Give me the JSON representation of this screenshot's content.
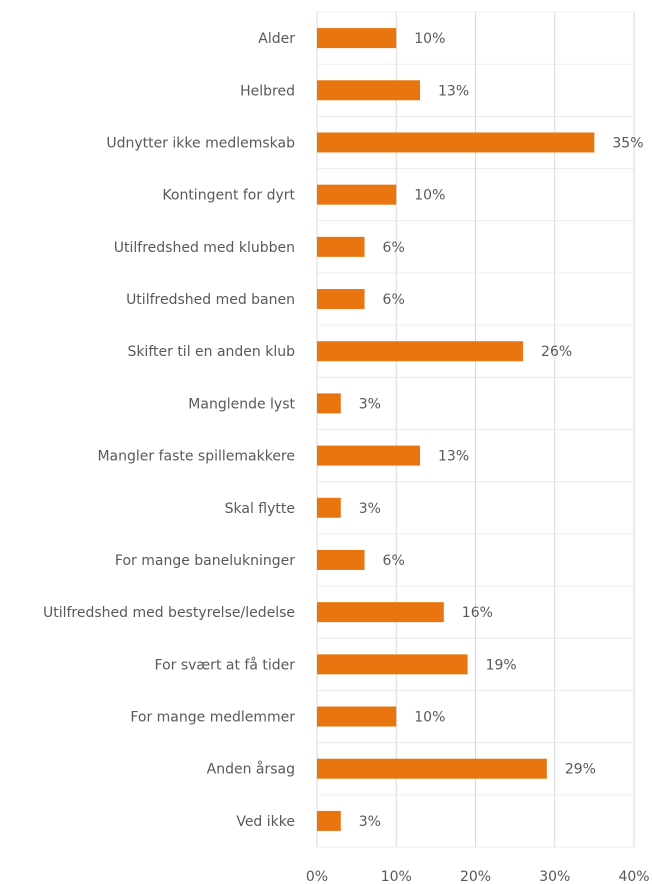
{
  "chart_data": {
    "type": "bar",
    "orientation": "horizontal",
    "categories": [
      "Alder",
      "Helbred",
      "Udnytter ikke medlemskab",
      "Kontingent for dyrt",
      "Utilfredshed med klubben",
      "Utilfredshed med banen",
      "Skifter til en anden klub",
      "Manglende lyst",
      "Mangler faste spillemakkere",
      "Skal flytte",
      "For mange banelukninger",
      "Utilfredshed med bestyrelse/ledelse",
      "For svært at få tider",
      "For mange medlemmer",
      "Anden årsag",
      "Ved ikke"
    ],
    "values": [
      10,
      13,
      35,
      10,
      6,
      6,
      26,
      3,
      13,
      3,
      6,
      16,
      19,
      10,
      29,
      3
    ],
    "value_labels": [
      "10%",
      "13%",
      "35%",
      "10%",
      "6%",
      "6%",
      "26%",
      "3%",
      "13%",
      "3%",
      "6%",
      "16%",
      "19%",
      "10%",
      "29%",
      "3%"
    ],
    "color": "#e8750f",
    "xlim": [
      0,
      40
    ],
    "xticks": [
      {
        "value": 0,
        "label": "0%"
      },
      {
        "value": 10,
        "label": "10%"
      },
      {
        "value": 20,
        "label": "20%"
      },
      {
        "value": 30,
        "label": "30%"
      },
      {
        "value": 40,
        "label": "40%"
      }
    ],
    "grid": true
  }
}
